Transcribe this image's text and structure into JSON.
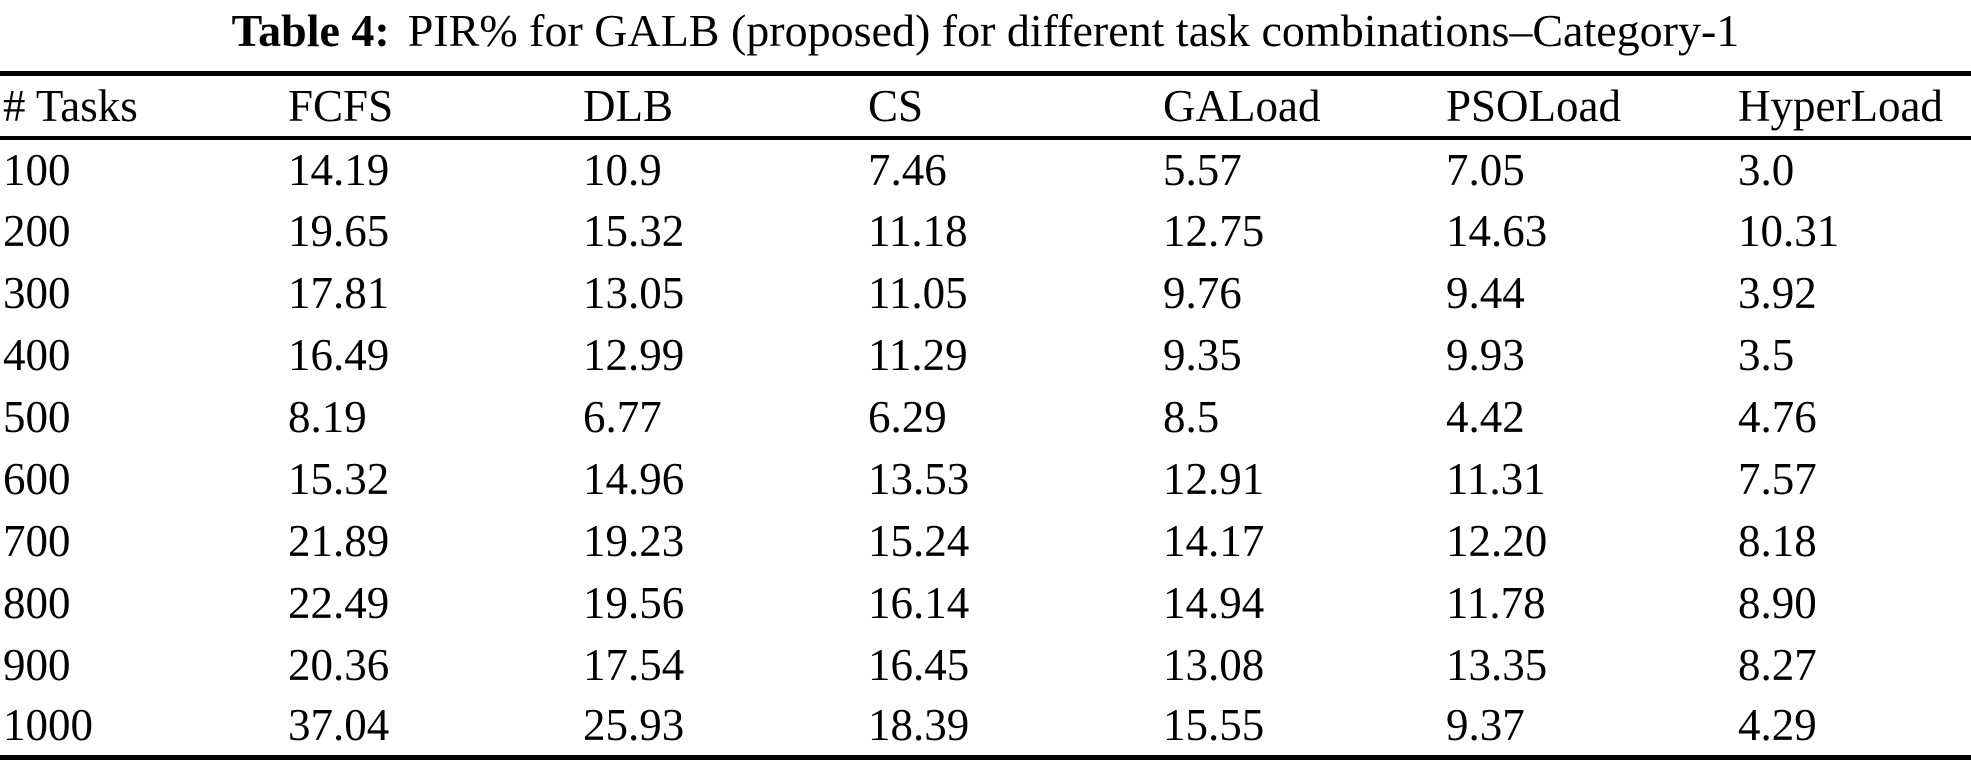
{
  "caption": {
    "label": "Table 4:",
    "text": "PIR% for GALB (proposed) for different task combinations–Category-1"
  },
  "table": {
    "columns": [
      "# Tasks",
      "FCFS",
      "DLB",
      "CS",
      "GALoad",
      "PSOLoad",
      "HyperLoad"
    ],
    "rows": [
      [
        "100",
        "14.19",
        "10.9",
        "7.46",
        "5.57",
        "7.05",
        "3.0"
      ],
      [
        "200",
        "19.65",
        "15.32",
        "11.18",
        "12.75",
        "14.63",
        "10.31"
      ],
      [
        "300",
        "17.81",
        "13.05",
        "11.05",
        "9.76",
        "9.44",
        "3.92"
      ],
      [
        "400",
        "16.49",
        "12.99",
        "11.29",
        "9.35",
        "9.93",
        "3.5"
      ],
      [
        "500",
        "8.19",
        "6.77",
        "6.29",
        "8.5",
        "4.42",
        "4.76"
      ],
      [
        "600",
        "15.32",
        "14.96",
        "13.53",
        "12.91",
        "11.31",
        "7.57"
      ],
      [
        "700",
        "21.89",
        "19.23",
        "15.24",
        "14.17",
        "12.20",
        "8.18"
      ],
      [
        "800",
        "22.49",
        "19.56",
        "16.14",
        "14.94",
        "11.78",
        "8.90"
      ],
      [
        "900",
        "20.36",
        "17.54",
        "16.45",
        "13.08",
        "13.35",
        "8.27"
      ],
      [
        "1000",
        "37.04",
        "25.93",
        "18.39",
        "15.55",
        "9.37",
        "4.29"
      ]
    ],
    "text_color": "#000000",
    "rule_color": "#000000",
    "background_color": "#ffffff"
  }
}
